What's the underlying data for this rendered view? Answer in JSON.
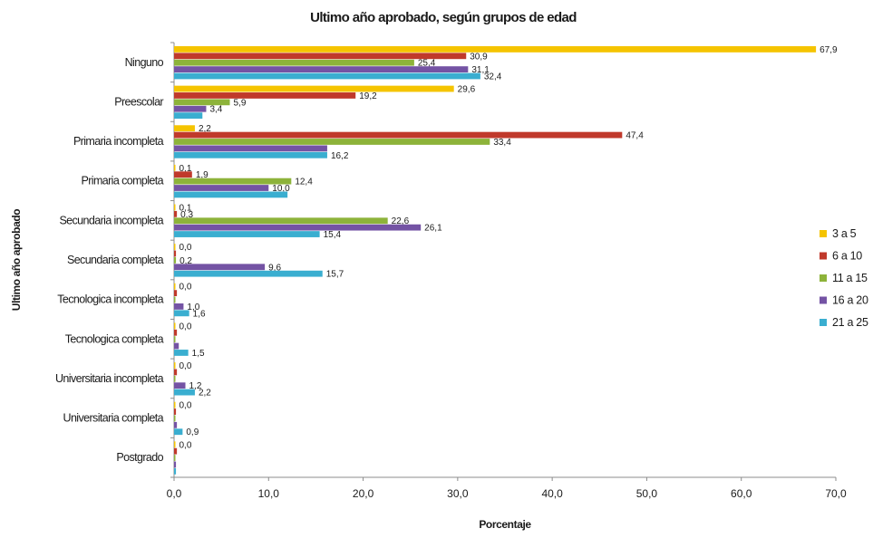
{
  "chart_data": {
    "type": "bar",
    "orientation": "horizontal",
    "title": "Ultimo año aprobado, según grupos de edad",
    "xlabel": "Porcentaje",
    "ylabel": "Ultimo año aprobado",
    "xlim": [
      0,
      70
    ],
    "x_ticks": [
      "0,0",
      "10,0",
      "20,0",
      "30,0",
      "40,0",
      "50,0",
      "60,0",
      "70,0"
    ],
    "x_tick_values": [
      0,
      10,
      20,
      30,
      40,
      50,
      60,
      70
    ],
    "grid": false,
    "legend_position": "right",
    "categories": [
      "Ninguno",
      "Preescolar",
      "Primaria incompleta",
      "Primaria completa",
      "Secundaria incompleta",
      "Secundaria completa",
      "Tecnologica incompleta",
      "Tecnologica completa",
      "Universitaria incompleta",
      "Universitaria completa",
      "Postgrado"
    ],
    "series": [
      {
        "name": "3 a 5",
        "color": "#f5c400",
        "values": [
          67.9,
          29.6,
          2.2,
          0.1,
          0.1,
          0.0,
          0.0,
          0.0,
          0.0,
          0.0,
          0.0
        ],
        "labels": [
          "67,9",
          "29,6",
          "2,2",
          "0,1",
          "0,1",
          "0,0",
          "0,0",
          "0,0",
          "0,0",
          "0,0",
          "0,0"
        ]
      },
      {
        "name": "6 a 10",
        "color": "#c0392b",
        "values": [
          30.9,
          19.2,
          47.4,
          1.9,
          0.3,
          0.2,
          0.3,
          0.3,
          0.3,
          0.2,
          0.3
        ],
        "labels": [
          "30,9",
          "19,2",
          "47,4",
          "1,9",
          "0,3",
          "",
          "",
          "",
          "",
          "",
          ""
        ]
      },
      {
        "name": "11 a 15",
        "color": "#8db33a",
        "values": [
          25.4,
          5.9,
          33.4,
          12.4,
          22.6,
          0.2,
          0.1,
          0.1,
          0.1,
          0.1,
          0.1
        ],
        "labels": [
          "25,4",
          "5,9",
          "33,4",
          "12,4",
          "22,6",
          "0,2",
          "",
          "",
          "",
          "",
          ""
        ]
      },
      {
        "name": "16 a 20",
        "color": "#7453a4",
        "values": [
          31.1,
          3.4,
          16.2,
          10.0,
          26.1,
          9.6,
          1.0,
          0.5,
          1.2,
          0.3,
          0.2
        ],
        "labels": [
          "31,1",
          "3,4",
          "",
          "10,0",
          "26,1",
          "9,6",
          "1,0",
          "",
          "1,2",
          "",
          ""
        ]
      },
      {
        "name": "21 a 25",
        "color": "#3aaed0",
        "values": [
          32.4,
          3.0,
          16.2,
          12.0,
          15.4,
          15.7,
          1.6,
          1.5,
          2.2,
          0.9,
          0.2
        ],
        "labels": [
          "32,4",
          "",
          "16,2",
          "",
          "15,4",
          "15,7",
          "1,6",
          "1,5",
          "2,2",
          "0,9",
          ""
        ]
      }
    ]
  }
}
